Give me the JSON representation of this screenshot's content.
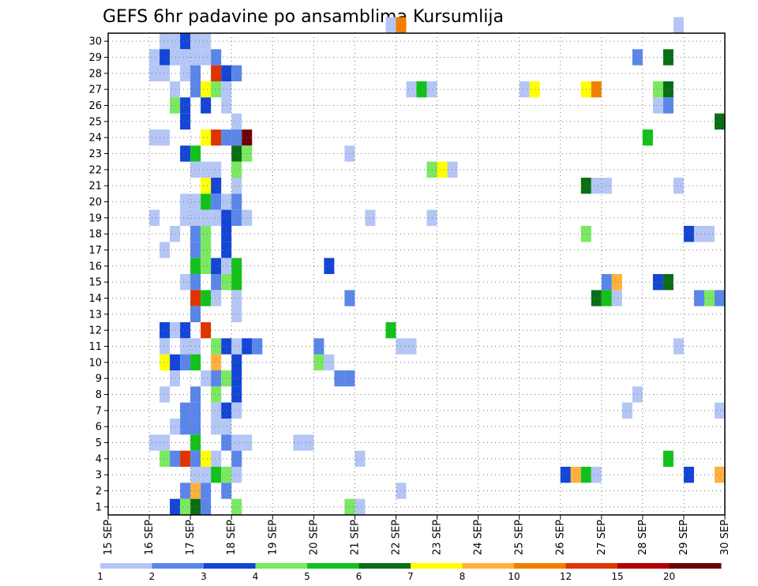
{
  "chart_data": {
    "type": "heatmap",
    "title": "GEFS 6hr padavine po ansamblima Kursumlija",
    "xlabel": "",
    "ylabel": "",
    "x_ticks": [
      "15 SEP",
      "16 SEP",
      "17 SEP",
      "18 SEP",
      "19 SEP",
      "20 SEP",
      "21 SEP",
      "22 SEP",
      "23 SEP",
      "24 SEP",
      "25 SEP",
      "26 SEP",
      "27 SEP",
      "28 SEP",
      "29 SEP",
      "30 SEP"
    ],
    "y_ticks": [
      "1",
      "2",
      "3",
      "4",
      "5",
      "6",
      "7",
      "8",
      "9",
      "10",
      "11",
      "12",
      "13",
      "14",
      "15",
      "16",
      "17",
      "18",
      "19",
      "20",
      "21",
      "22",
      "23",
      "24",
      "25",
      "26",
      "27",
      "28",
      "29",
      "30"
    ],
    "x_range": [
      0,
      60
    ],
    "y_range": [
      0,
      30
    ],
    "grid": true,
    "legend": {
      "placement": "bottom",
      "labels": [
        "1",
        "2",
        "3",
        "4",
        "5",
        "6",
        "7",
        "8",
        "10",
        "12",
        "15",
        "20"
      ],
      "colors": [
        "#b4c6f5",
        "#5a86ea",
        "#1346d6",
        "#7ae860",
        "#12c21a",
        "#0a6e14",
        "#ffff00",
        "#ffb13c",
        "#f27f00",
        "#e03400",
        "#b20000",
        "#6e0000"
      ]
    },
    "cells": [
      [
        27,
        30,
        0
      ],
      [
        28,
        30,
        8
      ],
      [
        55,
        30,
        0
      ],
      [
        5,
        29,
        0
      ],
      [
        6,
        29,
        0
      ],
      [
        7,
        29,
        2
      ],
      [
        8,
        29,
        0
      ],
      [
        9,
        29,
        0
      ],
      [
        4,
        28,
        0
      ],
      [
        5,
        28,
        2
      ],
      [
        6,
        28,
        0
      ],
      [
        7,
        28,
        0
      ],
      [
        8,
        28,
        0
      ],
      [
        9,
        28,
        0
      ],
      [
        10,
        28,
        1
      ],
      [
        51,
        28,
        1
      ],
      [
        54,
        28,
        5
      ],
      [
        4,
        27,
        0
      ],
      [
        5,
        27,
        0
      ],
      [
        7,
        27,
        0
      ],
      [
        8,
        27,
        1
      ],
      [
        10,
        27,
        9
      ],
      [
        11,
        27,
        2
      ],
      [
        12,
        27,
        1
      ],
      [
        6,
        26,
        0
      ],
      [
        8,
        26,
        1
      ],
      [
        9,
        26,
        6
      ],
      [
        10,
        26,
        3
      ],
      [
        11,
        26,
        0
      ],
      [
        29,
        26,
        0
      ],
      [
        30,
        26,
        4
      ],
      [
        31,
        26,
        0
      ],
      [
        40,
        26,
        0
      ],
      [
        41,
        26,
        6
      ],
      [
        46,
        26,
        6
      ],
      [
        47,
        26,
        8
      ],
      [
        53,
        26,
        3
      ],
      [
        54,
        26,
        5
      ],
      [
        6,
        25,
        3
      ],
      [
        7,
        25,
        2
      ],
      [
        9,
        25,
        2
      ],
      [
        11,
        25,
        0
      ],
      [
        53,
        25,
        0
      ],
      [
        54,
        25,
        1
      ],
      [
        7,
        24,
        2
      ],
      [
        12,
        24,
        0
      ],
      [
        59,
        24,
        5
      ],
      [
        4,
        23,
        0
      ],
      [
        5,
        23,
        0
      ],
      [
        9,
        23,
        6
      ],
      [
        10,
        23,
        9
      ],
      [
        11,
        23,
        1
      ],
      [
        12,
        23,
        1
      ],
      [
        13,
        23,
        11
      ],
      [
        52,
        23,
        4
      ],
      [
        7,
        22,
        2
      ],
      [
        8,
        22,
        4
      ],
      [
        12,
        22,
        5
      ],
      [
        13,
        22,
        3
      ],
      [
        23,
        22,
        0
      ],
      [
        8,
        21,
        0
      ],
      [
        9,
        21,
        0
      ],
      [
        10,
        21,
        0
      ],
      [
        12,
        21,
        3
      ],
      [
        31,
        21,
        3
      ],
      [
        32,
        21,
        6
      ],
      [
        33,
        21,
        0
      ],
      [
        9,
        20,
        6
      ],
      [
        10,
        20,
        2
      ],
      [
        12,
        20,
        0
      ],
      [
        46,
        20,
        5
      ],
      [
        47,
        20,
        0
      ],
      [
        48,
        20,
        0
      ],
      [
        55,
        20,
        0
      ],
      [
        7,
        19,
        0
      ],
      [
        8,
        19,
        0
      ],
      [
        9,
        19,
        4
      ],
      [
        10,
        19,
        1
      ],
      [
        11,
        19,
        0
      ],
      [
        12,
        19,
        1
      ],
      [
        4,
        18,
        0
      ],
      [
        7,
        18,
        0
      ],
      [
        8,
        18,
        0
      ],
      [
        9,
        18,
        0
      ],
      [
        10,
        18,
        0
      ],
      [
        11,
        18,
        2
      ],
      [
        12,
        18,
        1
      ],
      [
        13,
        18,
        0
      ],
      [
        25,
        18,
        0
      ],
      [
        31,
        18,
        0
      ],
      [
        6,
        17,
        0
      ],
      [
        8,
        17,
        1
      ],
      [
        9,
        17,
        3
      ],
      [
        11,
        17,
        2
      ],
      [
        46,
        17,
        3
      ],
      [
        56,
        17,
        2
      ],
      [
        57,
        17,
        0
      ],
      [
        58,
        17,
        0
      ],
      [
        5,
        16,
        0
      ],
      [
        8,
        16,
        1
      ],
      [
        9,
        16,
        3
      ],
      [
        11,
        16,
        2
      ],
      [
        8,
        15,
        4
      ],
      [
        9,
        15,
        3
      ],
      [
        10,
        15,
        2
      ],
      [
        11,
        15,
        0
      ],
      [
        12,
        15,
        4
      ],
      [
        21,
        15,
        2
      ],
      [
        7,
        14,
        0
      ],
      [
        8,
        14,
        1
      ],
      [
        10,
        14,
        1
      ],
      [
        11,
        14,
        3
      ],
      [
        12,
        14,
        4
      ],
      [
        48,
        14,
        1
      ],
      [
        49,
        14,
        7
      ],
      [
        53,
        14,
        2
      ],
      [
        54,
        14,
        5
      ],
      [
        8,
        13,
        9
      ],
      [
        9,
        13,
        4
      ],
      [
        10,
        13,
        0
      ],
      [
        12,
        13,
        0
      ],
      [
        23,
        13,
        1
      ],
      [
        47,
        13,
        5
      ],
      [
        48,
        13,
        4
      ],
      [
        49,
        13,
        0
      ],
      [
        57,
        13,
        1
      ],
      [
        58,
        13,
        3
      ],
      [
        59,
        13,
        1
      ],
      [
        8,
        12,
        1
      ],
      [
        12,
        12,
        0
      ],
      [
        5,
        11,
        2
      ],
      [
        6,
        11,
        0
      ],
      [
        7,
        11,
        2
      ],
      [
        9,
        11,
        9
      ],
      [
        27,
        11,
        4
      ],
      [
        5,
        10,
        0
      ],
      [
        7,
        10,
        0
      ],
      [
        8,
        10,
        0
      ],
      [
        10,
        10,
        3
      ],
      [
        11,
        10,
        2
      ],
      [
        12,
        10,
        0
      ],
      [
        13,
        10,
        2
      ],
      [
        14,
        10,
        1
      ],
      [
        20,
        10,
        1
      ],
      [
        28,
        10,
        0
      ],
      [
        29,
        10,
        0
      ],
      [
        55,
        10,
        0
      ],
      [
        5,
        9,
        6
      ],
      [
        6,
        9,
        2
      ],
      [
        7,
        9,
        1
      ],
      [
        8,
        9,
        4
      ],
      [
        10,
        9,
        7
      ],
      [
        12,
        9,
        2
      ],
      [
        20,
        9,
        3
      ],
      [
        21,
        9,
        0
      ],
      [
        6,
        8,
        0
      ],
      [
        9,
        8,
        0
      ],
      [
        10,
        8,
        1
      ],
      [
        11,
        8,
        3
      ],
      [
        12,
        8,
        2
      ],
      [
        22,
        8,
        1
      ],
      [
        23,
        8,
        1
      ],
      [
        5,
        7,
        0
      ],
      [
        8,
        7,
        1
      ],
      [
        10,
        7,
        3
      ],
      [
        12,
        7,
        2
      ],
      [
        51,
        7,
        0
      ],
      [
        7,
        6,
        1
      ],
      [
        8,
        6,
        1
      ],
      [
        10,
        6,
        0
      ],
      [
        11,
        6,
        2
      ],
      [
        12,
        6,
        0
      ],
      [
        50,
        6,
        0
      ],
      [
        59,
        6,
        0
      ],
      [
        60,
        6,
        2
      ],
      [
        6,
        5,
        0
      ],
      [
        7,
        5,
        1
      ],
      [
        8,
        5,
        1
      ],
      [
        10,
        5,
        0
      ],
      [
        11,
        5,
        0
      ],
      [
        4,
        4,
        0
      ],
      [
        5,
        4,
        0
      ],
      [
        8,
        4,
        4
      ],
      [
        11,
        4,
        1
      ],
      [
        12,
        4,
        0
      ],
      [
        13,
        4,
        0
      ],
      [
        18,
        4,
        0
      ],
      [
        19,
        4,
        0
      ],
      [
        5,
        3,
        3
      ],
      [
        6,
        3,
        1
      ],
      [
        7,
        3,
        9
      ],
      [
        8,
        3,
        1
      ],
      [
        9,
        3,
        6
      ],
      [
        10,
        3,
        0
      ],
      [
        12,
        3,
        1
      ],
      [
        24,
        3,
        0
      ],
      [
        54,
        3,
        4
      ],
      [
        8,
        2,
        0
      ],
      [
        9,
        2,
        0
      ],
      [
        10,
        2,
        4
      ],
      [
        11,
        2,
        3
      ],
      [
        12,
        2,
        0
      ],
      [
        44,
        2,
        2
      ],
      [
        45,
        2,
        7
      ],
      [
        46,
        2,
        4
      ],
      [
        47,
        2,
        0
      ],
      [
        56,
        2,
        2
      ],
      [
        59,
        2,
        7
      ],
      [
        7,
        1,
        1
      ],
      [
        8,
        1,
        7
      ],
      [
        9,
        1,
        1
      ],
      [
        11,
        1,
        1
      ],
      [
        28,
        1,
        0
      ],
      [
        6,
        0,
        2
      ],
      [
        7,
        0,
        3
      ],
      [
        8,
        0,
        5
      ],
      [
        9,
        0,
        1
      ],
      [
        12,
        0,
        3
      ],
      [
        23,
        0,
        3
      ],
      [
        24,
        0,
        0
      ]
    ]
  }
}
